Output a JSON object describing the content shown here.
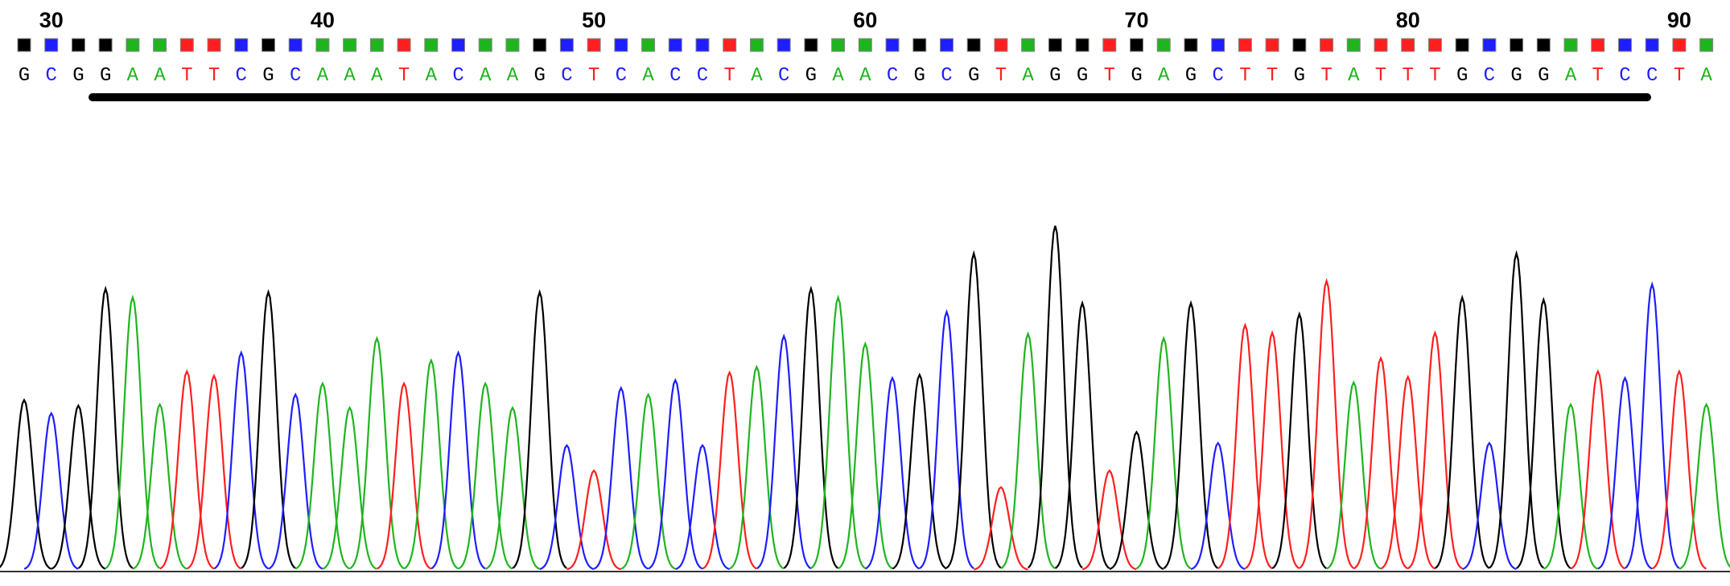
{
  "ruler": {
    "labels": [
      30,
      40,
      50,
      60,
      70,
      80,
      90
    ]
  },
  "colors": {
    "A": "#1fb51f",
    "C": "#1e1eff",
    "G": "#000000",
    "T": "#ff1f1f"
  },
  "bases": [
    {
      "base": "G",
      "height": 154
    },
    {
      "base": "C",
      "height": 142
    },
    {
      "base": "G",
      "height": 149
    },
    {
      "base": "G",
      "height": 255
    },
    {
      "base": "A",
      "height": 247
    },
    {
      "base": "A",
      "height": 150
    },
    {
      "base": "T",
      "height": 180
    },
    {
      "base": "T",
      "height": 176
    },
    {
      "base": "C",
      "height": 197
    },
    {
      "base": "G",
      "height": 252
    },
    {
      "base": "C",
      "height": 159
    },
    {
      "base": "A",
      "height": 169
    },
    {
      "base": "A",
      "height": 147
    },
    {
      "base": "A",
      "height": 210
    },
    {
      "base": "T",
      "height": 169
    },
    {
      "base": "A",
      "height": 190
    },
    {
      "base": "C",
      "height": 197
    },
    {
      "base": "A",
      "height": 169
    },
    {
      "base": "A",
      "height": 147
    },
    {
      "base": "G",
      "height": 252
    },
    {
      "base": "C",
      "height": 113
    },
    {
      "base": "T",
      "height": 90
    },
    {
      "base": "C",
      "height": 165
    },
    {
      "base": "A",
      "height": 159
    },
    {
      "base": "C",
      "height": 172
    },
    {
      "base": "C",
      "height": 113
    },
    {
      "base": "T",
      "height": 179
    },
    {
      "base": "A",
      "height": 184
    },
    {
      "base": "C",
      "height": 212
    },
    {
      "base": "G",
      "height": 255
    },
    {
      "base": "A",
      "height": 247
    },
    {
      "base": "A",
      "height": 205
    },
    {
      "base": "C",
      "height": 174
    },
    {
      "base": "G",
      "height": 177
    },
    {
      "base": "C",
      "height": 234
    },
    {
      "base": "G",
      "height": 287
    },
    {
      "base": "T",
      "height": 75
    },
    {
      "base": "A",
      "height": 214
    },
    {
      "base": "G",
      "height": 312
    },
    {
      "base": "G",
      "height": 242
    },
    {
      "base": "T",
      "height": 90
    },
    {
      "base": "G",
      "height": 125
    },
    {
      "base": "A",
      "height": 210
    },
    {
      "base": "G",
      "height": 242
    },
    {
      "base": "C",
      "height": 115
    },
    {
      "base": "T",
      "height": 222
    },
    {
      "base": "T",
      "height": 215
    },
    {
      "base": "G",
      "height": 232
    },
    {
      "base": "T",
      "height": 262
    },
    {
      "base": "A",
      "height": 170
    },
    {
      "base": "T",
      "height": 192
    },
    {
      "base": "T",
      "height": 175
    },
    {
      "base": "T",
      "height": 215
    },
    {
      "base": "G",
      "height": 247
    },
    {
      "base": "C",
      "height": 115
    },
    {
      "base": "G",
      "height": 287
    },
    {
      "base": "G",
      "height": 245
    },
    {
      "base": "A",
      "height": 150
    },
    {
      "base": "T",
      "height": 180
    },
    {
      "base": "C",
      "height": 174
    },
    {
      "base": "C",
      "height": 259
    },
    {
      "base": "T",
      "height": 180
    },
    {
      "base": "A",
      "height": 150
    }
  ]
}
